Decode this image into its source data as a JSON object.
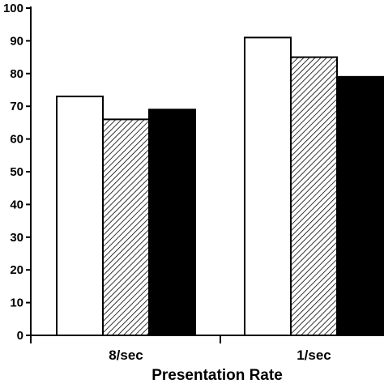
{
  "chart_data": {
    "type": "bar",
    "title": "",
    "xlabel": "Presentation Rate",
    "ylabel": "",
    "categories": [
      "8/sec",
      "1/sec"
    ],
    "series": [
      {
        "fill": "white",
        "values": [
          73,
          91
        ]
      },
      {
        "fill": "hatched",
        "values": [
          66,
          85
        ]
      },
      {
        "fill": "black",
        "values": [
          69,
          79
        ]
      }
    ],
    "ylim": [
      0,
      100
    ],
    "yticks": [
      "0",
      "10",
      "20",
      "30",
      "40",
      "50",
      "60",
      "70",
      "80",
      "90",
      "100"
    ],
    "grid": false,
    "legend": "none",
    "colors": {
      "stroke": "#000000",
      "white_fill": "#ffffff",
      "black_fill": "#000000"
    }
  }
}
